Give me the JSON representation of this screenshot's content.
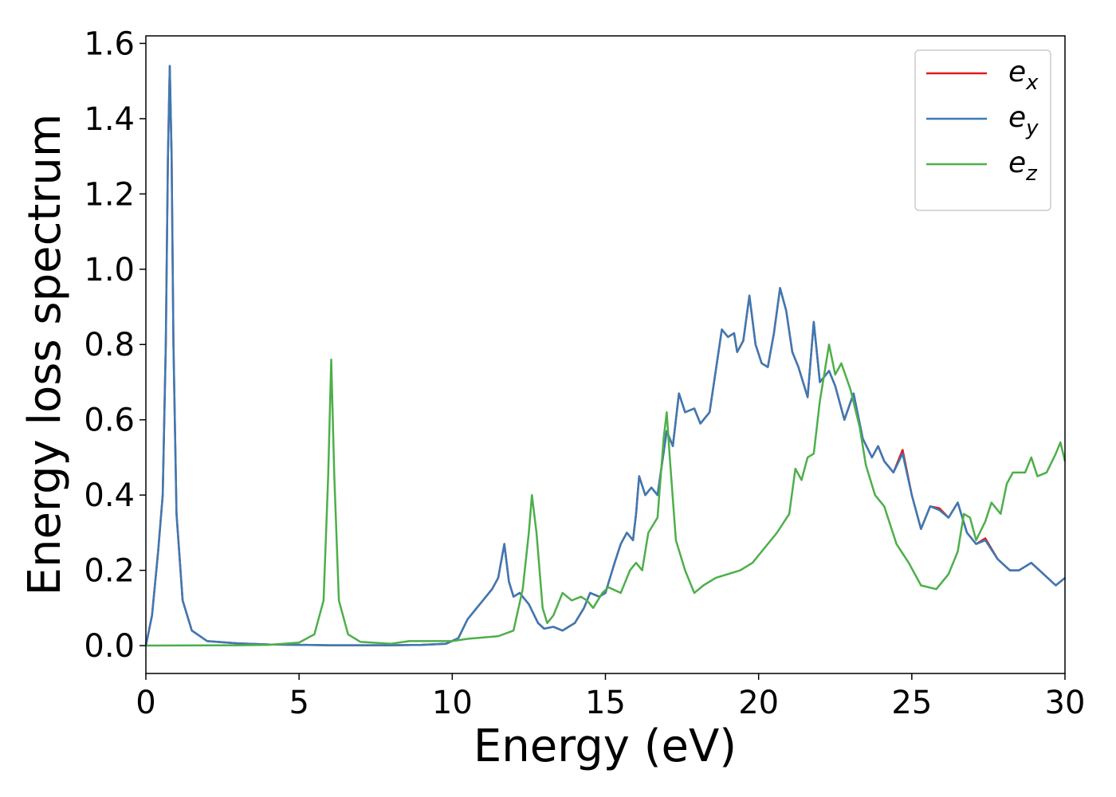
{
  "chart_data": {
    "type": "line",
    "xlabel": "Energy (eV)",
    "ylabel": "Energy loss spectrum",
    "xlim": [
      0,
      30
    ],
    "ylim": [
      -0.074,
      1.62
    ],
    "xticks": [
      0,
      5,
      10,
      15,
      20,
      25,
      30
    ],
    "yticks": [
      {
        "value": 0,
        "label": "0.0"
      },
      {
        "value": 0.2,
        "label": "0.2"
      },
      {
        "value": 0.4,
        "label": "0.4"
      },
      {
        "value": 0.6,
        "label": "0.6"
      },
      {
        "value": 0.8,
        "label": "0.8"
      },
      {
        "value": 1,
        "label": "1.0"
      },
      {
        "value": 1.2,
        "label": "1.2"
      },
      {
        "value": 1.4,
        "label": "1.4"
      },
      {
        "value": 1.6,
        "label": "1.6"
      }
    ],
    "legend": "upper right",
    "grid": false,
    "series": [
      {
        "name": "e_x",
        "color": "#e41a1c",
        "x": [
          0,
          0.2,
          0.4,
          0.55,
          0.65,
          0.72,
          0.78,
          0.84,
          0.9,
          1.0,
          1.2,
          1.5,
          2,
          3,
          4,
          5,
          6,
          7,
          8,
          9,
          9.8,
          10.2,
          10.5,
          10.8,
          11,
          11.3,
          11.5,
          11.7,
          11.85,
          12,
          12.2,
          12.5,
          12.8,
          13,
          13.3,
          13.6,
          14,
          14.3,
          14.5,
          14.8,
          15,
          15.3,
          15.5,
          15.7,
          15.9,
          16,
          16.1,
          16.3,
          16.5,
          16.7,
          17,
          17.2,
          17.4,
          17.6,
          17.9,
          18.1,
          18.4,
          18.8,
          19,
          19.2,
          19.3,
          19.5,
          19.7,
          19.9,
          20.1,
          20.3,
          20.5,
          20.7,
          20.9,
          21.1,
          21.3,
          21.6,
          21.8,
          22,
          22.3,
          22.5,
          22.8,
          23.1,
          23.4,
          23.7,
          23.9,
          24.1,
          24.4,
          24.7,
          25,
          25.3,
          25.6,
          25.9,
          26.2,
          26.5,
          26.8,
          27.1,
          27.4,
          27.8,
          28.2,
          28.5,
          28.9,
          29.3,
          29.7,
          30
        ],
        "values": [
          0,
          0.08,
          0.25,
          0.4,
          0.8,
          1.3,
          1.54,
          1.3,
          0.8,
          0.35,
          0.12,
          0.04,
          0.012,
          0.006,
          0.003,
          0.002,
          0.001,
          0.001,
          0.001,
          0.002,
          0.005,
          0.02,
          0.07,
          0.1,
          0.12,
          0.15,
          0.18,
          0.27,
          0.17,
          0.13,
          0.14,
          0.11,
          0.06,
          0.045,
          0.05,
          0.04,
          0.06,
          0.1,
          0.14,
          0.13,
          0.14,
          0.22,
          0.27,
          0.3,
          0.28,
          0.35,
          0.45,
          0.4,
          0.42,
          0.4,
          0.57,
          0.53,
          0.67,
          0.62,
          0.63,
          0.59,
          0.62,
          0.84,
          0.82,
          0.83,
          0.78,
          0.81,
          0.93,
          0.8,
          0.75,
          0.74,
          0.83,
          0.95,
          0.89,
          0.78,
          0.74,
          0.66,
          0.86,
          0.7,
          0.73,
          0.69,
          0.6,
          0.67,
          0.55,
          0.5,
          0.53,
          0.49,
          0.46,
          0.52,
          0.4,
          0.31,
          0.37,
          0.365,
          0.34,
          0.38,
          0.3,
          0.27,
          0.285,
          0.23,
          0.2,
          0.2,
          0.22,
          0.19,
          0.16,
          0.18
        ]
      },
      {
        "name": "e_y",
        "color": "#3a7ab5",
        "x": [
          0,
          0.2,
          0.4,
          0.55,
          0.65,
          0.72,
          0.78,
          0.84,
          0.9,
          1.0,
          1.2,
          1.5,
          2,
          3,
          4,
          5,
          6,
          7,
          8,
          9,
          9.8,
          10.2,
          10.5,
          10.8,
          11,
          11.3,
          11.5,
          11.7,
          11.85,
          12,
          12.2,
          12.5,
          12.8,
          13,
          13.3,
          13.6,
          14,
          14.3,
          14.5,
          14.8,
          15,
          15.3,
          15.5,
          15.7,
          15.9,
          16,
          16.1,
          16.3,
          16.5,
          16.7,
          17,
          17.2,
          17.4,
          17.6,
          17.9,
          18.1,
          18.4,
          18.8,
          19,
          19.2,
          19.3,
          19.5,
          19.7,
          19.9,
          20.1,
          20.3,
          20.5,
          20.7,
          20.9,
          21.1,
          21.3,
          21.6,
          21.8,
          22,
          22.3,
          22.5,
          22.8,
          23.1,
          23.4,
          23.7,
          23.9,
          24.1,
          24.4,
          24.7,
          25,
          25.3,
          25.6,
          25.9,
          26.2,
          26.5,
          26.8,
          27.1,
          27.4,
          27.8,
          28.2,
          28.5,
          28.9,
          29.3,
          29.7,
          30
        ],
        "values": [
          0,
          0.08,
          0.25,
          0.4,
          0.8,
          1.3,
          1.54,
          1.3,
          0.8,
          0.35,
          0.12,
          0.04,
          0.012,
          0.006,
          0.003,
          0.002,
          0.001,
          0.001,
          0.001,
          0.002,
          0.005,
          0.02,
          0.07,
          0.1,
          0.12,
          0.15,
          0.18,
          0.27,
          0.17,
          0.13,
          0.14,
          0.11,
          0.06,
          0.045,
          0.05,
          0.04,
          0.06,
          0.1,
          0.14,
          0.13,
          0.14,
          0.22,
          0.27,
          0.3,
          0.28,
          0.35,
          0.45,
          0.4,
          0.42,
          0.4,
          0.57,
          0.53,
          0.67,
          0.62,
          0.63,
          0.59,
          0.62,
          0.84,
          0.82,
          0.83,
          0.78,
          0.81,
          0.93,
          0.8,
          0.75,
          0.74,
          0.83,
          0.95,
          0.89,
          0.78,
          0.74,
          0.66,
          0.86,
          0.7,
          0.73,
          0.69,
          0.6,
          0.67,
          0.55,
          0.5,
          0.53,
          0.49,
          0.46,
          0.51,
          0.4,
          0.31,
          0.37,
          0.36,
          0.34,
          0.38,
          0.3,
          0.27,
          0.28,
          0.23,
          0.2,
          0.2,
          0.22,
          0.19,
          0.16,
          0.18
        ]
      },
      {
        "name": "e_z",
        "color": "#4daf4a",
        "x": [
          0,
          3,
          4,
          5,
          5.5,
          5.8,
          5.95,
          6.05,
          6.15,
          6.3,
          6.6,
          7,
          8,
          8.6,
          9.5,
          10,
          10.5,
          11.5,
          12,
          12.3,
          12.5,
          12.6,
          12.75,
          12.95,
          13.1,
          13.3,
          13.6,
          13.9,
          14.2,
          14.4,
          14.6,
          14.9,
          15.1,
          15.5,
          15.8,
          16,
          16.2,
          16.4,
          16.7,
          16.9,
          17,
          17.1,
          17.3,
          17.6,
          17.9,
          18.2,
          18.6,
          19,
          19.4,
          19.8,
          20.2,
          20.6,
          21,
          21.2,
          21.4,
          21.6,
          21.8,
          22,
          22.3,
          22.5,
          22.7,
          23,
          23.3,
          23.5,
          23.8,
          24.1,
          24.5,
          24.9,
          25.3,
          25.8,
          26.2,
          26.5,
          26.7,
          26.9,
          27.1,
          27.4,
          27.6,
          27.9,
          28.1,
          28.3,
          28.7,
          28.9,
          29.1,
          29.4,
          29.7,
          29.85,
          30
        ],
        "values": [
          0,
          0.001,
          0.002,
          0.008,
          0.03,
          0.12,
          0.45,
          0.76,
          0.45,
          0.12,
          0.03,
          0.01,
          0.005,
          0.012,
          0.012,
          0.012,
          0.018,
          0.025,
          0.04,
          0.15,
          0.3,
          0.4,
          0.3,
          0.1,
          0.06,
          0.08,
          0.14,
          0.12,
          0.13,
          0.12,
          0.1,
          0.14,
          0.155,
          0.14,
          0.2,
          0.22,
          0.2,
          0.3,
          0.34,
          0.55,
          0.62,
          0.5,
          0.28,
          0.2,
          0.14,
          0.16,
          0.18,
          0.19,
          0.2,
          0.22,
          0.26,
          0.3,
          0.35,
          0.47,
          0.44,
          0.5,
          0.51,
          0.65,
          0.8,
          0.72,
          0.75,
          0.68,
          0.58,
          0.48,
          0.4,
          0.37,
          0.27,
          0.22,
          0.16,
          0.15,
          0.19,
          0.25,
          0.35,
          0.34,
          0.28,
          0.33,
          0.38,
          0.35,
          0.43,
          0.46,
          0.46,
          0.5,
          0.45,
          0.46,
          0.51,
          0.54,
          0.49
        ]
      }
    ]
  }
}
